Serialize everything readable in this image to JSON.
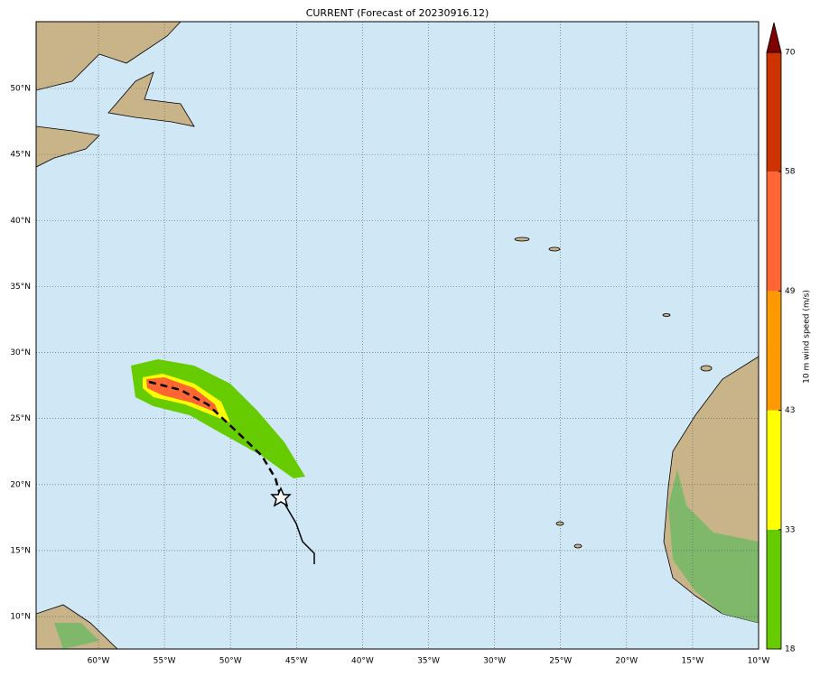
{
  "chart_data": {
    "type": "map",
    "title": "CURRENT (Forecast of 20230916.12)",
    "xlim": [
      -64.72,
      -10
    ],
    "ylim": [
      7.54,
      55.06
    ],
    "xticks": [
      {
        "value": -60,
        "label": "60°W"
      },
      {
        "value": -55,
        "label": "55°W"
      },
      {
        "value": -50,
        "label": "50°W"
      },
      {
        "value": -45,
        "label": "45°W"
      },
      {
        "value": -40,
        "label": "40°W"
      },
      {
        "value": -35,
        "label": "35°W"
      },
      {
        "value": -30,
        "label": "30°W"
      },
      {
        "value": -25,
        "label": "25°W"
      },
      {
        "value": -20,
        "label": "20°W"
      },
      {
        "value": -15,
        "label": "15°W"
      },
      {
        "value": -10,
        "label": "10°W"
      }
    ],
    "yticks": [
      {
        "value": 10,
        "label": "10°N"
      },
      {
        "value": 15,
        "label": "15°N"
      },
      {
        "value": 20,
        "label": "20°N"
      },
      {
        "value": 25,
        "label": "25°N"
      },
      {
        "value": 30,
        "label": "30°N"
      },
      {
        "value": 35,
        "label": "35°N"
      },
      {
        "value": 40,
        "label": "40°N"
      },
      {
        "value": 45,
        "label": "45°N"
      },
      {
        "value": 50,
        "label": "50°N"
      }
    ],
    "grid": true,
    "colorbar": {
      "label": "10 m wind speed (m/s)",
      "ticks": [
        18,
        33,
        43,
        49,
        58,
        70
      ],
      "colors": [
        "#66cc00",
        "#ffff00",
        "#ff9900",
        "#ff6633",
        "#cc3300"
      ],
      "extend_color": "#800000"
    }
  }
}
